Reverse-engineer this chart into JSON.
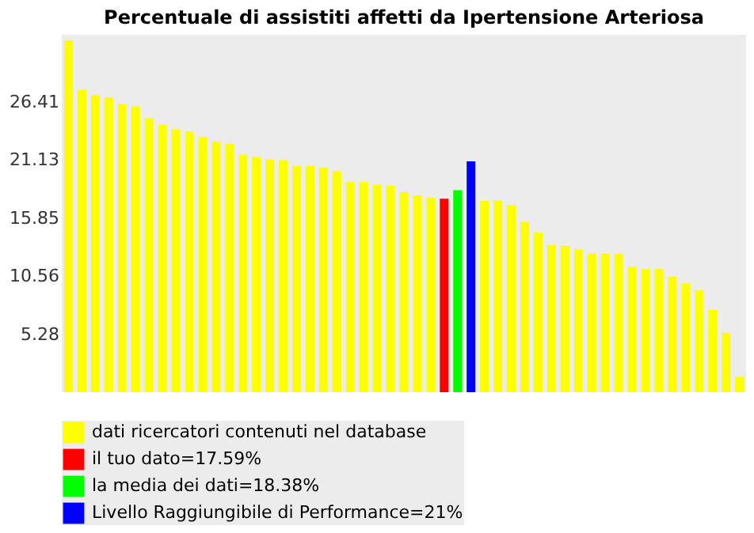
{
  "chart_data": {
    "type": "bar",
    "title": "Percentuale di assistiti affetti da Ipertensione Arteriosa",
    "categories": [
      null,
      null,
      null,
      null,
      null,
      null,
      null,
      null,
      null,
      null,
      null,
      null,
      null,
      null,
      null,
      null,
      null,
      null,
      null,
      null,
      null,
      null,
      null,
      null,
      null,
      null,
      null,
      null,
      null,
      null,
      null,
      null,
      null,
      null,
      null,
      null,
      null,
      null,
      null,
      null,
      null,
      null,
      null,
      null,
      null,
      null,
      null,
      null,
      null,
      null,
      null
    ],
    "series": [
      {
        "name": "dati ricercatori contenuti nel database",
        "color": "#ffff00",
        "values": [
          32.0,
          27.5,
          27.0,
          26.8,
          26.2,
          26.0,
          24.9,
          24.3,
          23.9,
          23.7,
          23.2,
          22.8,
          22.6,
          21.6,
          21.4,
          21.2,
          21.1,
          20.6,
          20.6,
          20.4,
          20.1,
          19.1,
          19.1,
          18.9,
          18.8,
          18.2,
          17.9,
          17.7,
          null,
          null,
          null,
          17.4,
          17.4,
          17.0,
          15.5,
          14.5,
          13.4,
          13.3,
          13.0,
          12.6,
          12.6,
          12.6,
          11.4,
          11.2,
          11.2,
          10.5,
          9.9,
          9.3,
          7.5,
          5.4,
          1.4
        ]
      },
      {
        "name": "il tuo dato=17.59%",
        "color": "#ff0000",
        "values": [
          null,
          null,
          null,
          null,
          null,
          null,
          null,
          null,
          null,
          null,
          null,
          null,
          null,
          null,
          null,
          null,
          null,
          null,
          null,
          null,
          null,
          null,
          null,
          null,
          null,
          null,
          null,
          null,
          17.59,
          null,
          null,
          null,
          null,
          null,
          null,
          null,
          null,
          null,
          null,
          null,
          null,
          null,
          null,
          null,
          null,
          null,
          null,
          null,
          null,
          null,
          null
        ]
      },
      {
        "name": "la media dei dati=18.38%",
        "color": "#00ff00",
        "values": [
          null,
          null,
          null,
          null,
          null,
          null,
          null,
          null,
          null,
          null,
          null,
          null,
          null,
          null,
          null,
          null,
          null,
          null,
          null,
          null,
          null,
          null,
          null,
          null,
          null,
          null,
          null,
          null,
          null,
          18.38,
          null,
          null,
          null,
          null,
          null,
          null,
          null,
          null,
          null,
          null,
          null,
          null,
          null,
          null,
          null,
          null,
          null,
          null,
          null,
          null,
          null
        ]
      },
      {
        "name": "Livello Raggiungibile di Performance=21%",
        "color": "#0000ff",
        "values": [
          null,
          null,
          null,
          null,
          null,
          null,
          null,
          null,
          null,
          null,
          null,
          null,
          null,
          null,
          null,
          null,
          null,
          null,
          null,
          null,
          null,
          null,
          null,
          null,
          null,
          null,
          null,
          null,
          null,
          null,
          21,
          null,
          null,
          null,
          null,
          null,
          null,
          null,
          null,
          null,
          null,
          null,
          null,
          null,
          null,
          null,
          null,
          null,
          null,
          null,
          null
        ]
      }
    ],
    "ylim": [
      0,
      32.5
    ],
    "yticks": [
      5.28,
      10.56,
      15.85,
      21.13,
      26.41
    ],
    "stacked": true,
    "grid": false,
    "legend": "bottom",
    "tick_labels": "y"
  }
}
